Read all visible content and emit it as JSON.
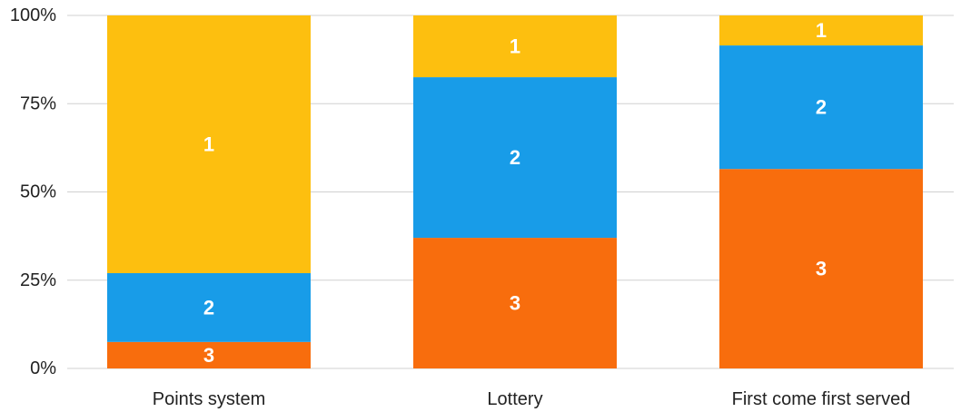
{
  "chart_data": {
    "type": "bar",
    "stacked": true,
    "percent": true,
    "categories": [
      "Points system",
      "Lottery",
      "First come first served"
    ],
    "series": [
      {
        "name": "3",
        "color": "#f86d0d",
        "values": [
          7.5,
          37,
          56.5
        ]
      },
      {
        "name": "2",
        "color": "#189ce8",
        "values": [
          19.5,
          45.5,
          35
        ]
      },
      {
        "name": "1",
        "color": "#fdbf0f",
        "values": [
          73,
          17.5,
          8.5
        ]
      }
    ],
    "yticks": [
      "0%",
      "25%",
      "50%",
      "75%",
      "100%"
    ],
    "ylim": [
      0,
      100
    ],
    "title": "",
    "xlabel": "",
    "ylabel": "",
    "grid": true,
    "legend": "none"
  }
}
